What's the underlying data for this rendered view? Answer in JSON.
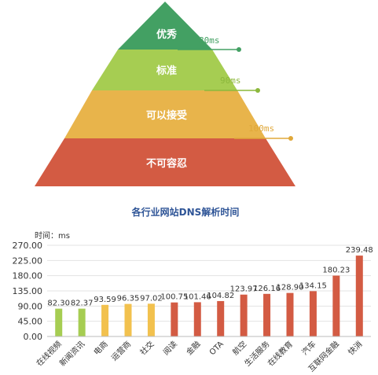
{
  "pyramid": {
    "tiers": [
      {
        "label": "优秀",
        "color": "#43a063",
        "threshold": "80ms",
        "threshold_color": "#43a063"
      },
      {
        "label": "标准",
        "color": "#a6cd52",
        "threshold": "90ms",
        "threshold_color": "#8cb83c"
      },
      {
        "label": "可以接受",
        "color": "#e8b44b",
        "threshold": "100ms",
        "threshold_color": "#e0a83a"
      },
      {
        "label": "不可容忍",
        "color": "#d35b43",
        "threshold": "",
        "threshold_color": ""
      }
    ]
  },
  "chart_data": {
    "type": "bar",
    "title": "各行业网站DNS解析时间",
    "ylabel": "时间：ms",
    "xlabel": "",
    "ylim": [
      0,
      270
    ],
    "yticks": [
      "0.00",
      "45.00",
      "90.00",
      "135.00",
      "180.00",
      "225.00",
      "270.00"
    ],
    "grid": true,
    "categories": [
      "在线视频",
      "新闻资讯",
      "电商",
      "运营商",
      "社交",
      "阅读",
      "金融",
      "OTA",
      "航空",
      "生活服务",
      "在线教育",
      "汽车",
      "互联网金融",
      "快消"
    ],
    "values": [
      82.3,
      82.37,
      93.59,
      96.35,
      97.02,
      100.75,
      101.46,
      104.82,
      123.97,
      126.16,
      128.9,
      134.15,
      180.23,
      239.48
    ],
    "value_labels": [
      "82.30",
      "82.37",
      "93.59",
      "96.35",
      "97.02",
      "100.75",
      "101.46",
      "104.82",
      "123.97",
      "126.16",
      "128.90",
      "134.15",
      "180.23",
      "239.48"
    ],
    "bar_colors": [
      "#a6cd52",
      "#a6cd52",
      "#f2c14e",
      "#f2c14e",
      "#f2c14e",
      "#d35b43",
      "#d35b43",
      "#d35b43",
      "#d35b43",
      "#d35b43",
      "#d35b43",
      "#d35b43",
      "#d35b43",
      "#d35b43"
    ]
  }
}
